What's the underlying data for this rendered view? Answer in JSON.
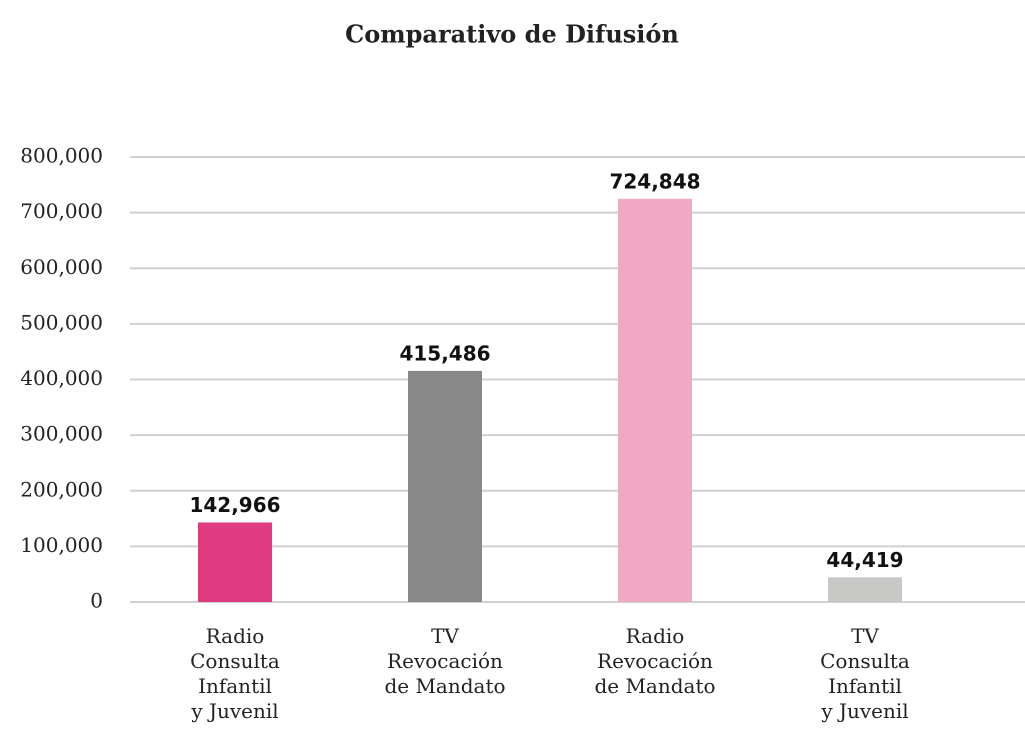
{
  "chart_data": {
    "type": "bar",
    "title": "Comparativo de Difusión",
    "categories": [
      "Radio\nConsulta\nInfantil\ny Juvenil",
      "TV\nRevocación\nde Mandato",
      "Radio\nRevocación\nde Mandato",
      "TV\nConsulta\nInfantil\ny Juvenil"
    ],
    "values": [
      142966,
      415486,
      724848,
      44419
    ],
    "value_labels": [
      "142,966",
      "415,486",
      "724,848",
      "44,419"
    ],
    "colors": [
      "#e03a80",
      "#888888",
      "#f0a9c2",
      "#c8c8c6"
    ],
    "ylim": [
      0,
      800000
    ],
    "yticks": [
      {
        "value": 0,
        "label": "0"
      },
      {
        "value": 100000,
        "label": "100,000"
      },
      {
        "value": 200000,
        "label": "200,000"
      },
      {
        "value": 300000,
        "label": "300,000"
      },
      {
        "value": 400000,
        "label": "400,000"
      },
      {
        "value": 500000,
        "label": "500,000"
      },
      {
        "value": 600000,
        "label": "600,000"
      },
      {
        "value": 700000,
        "label": "700,000"
      },
      {
        "value": 800000,
        "label": "800,000"
      }
    ],
    "grid": true
  }
}
